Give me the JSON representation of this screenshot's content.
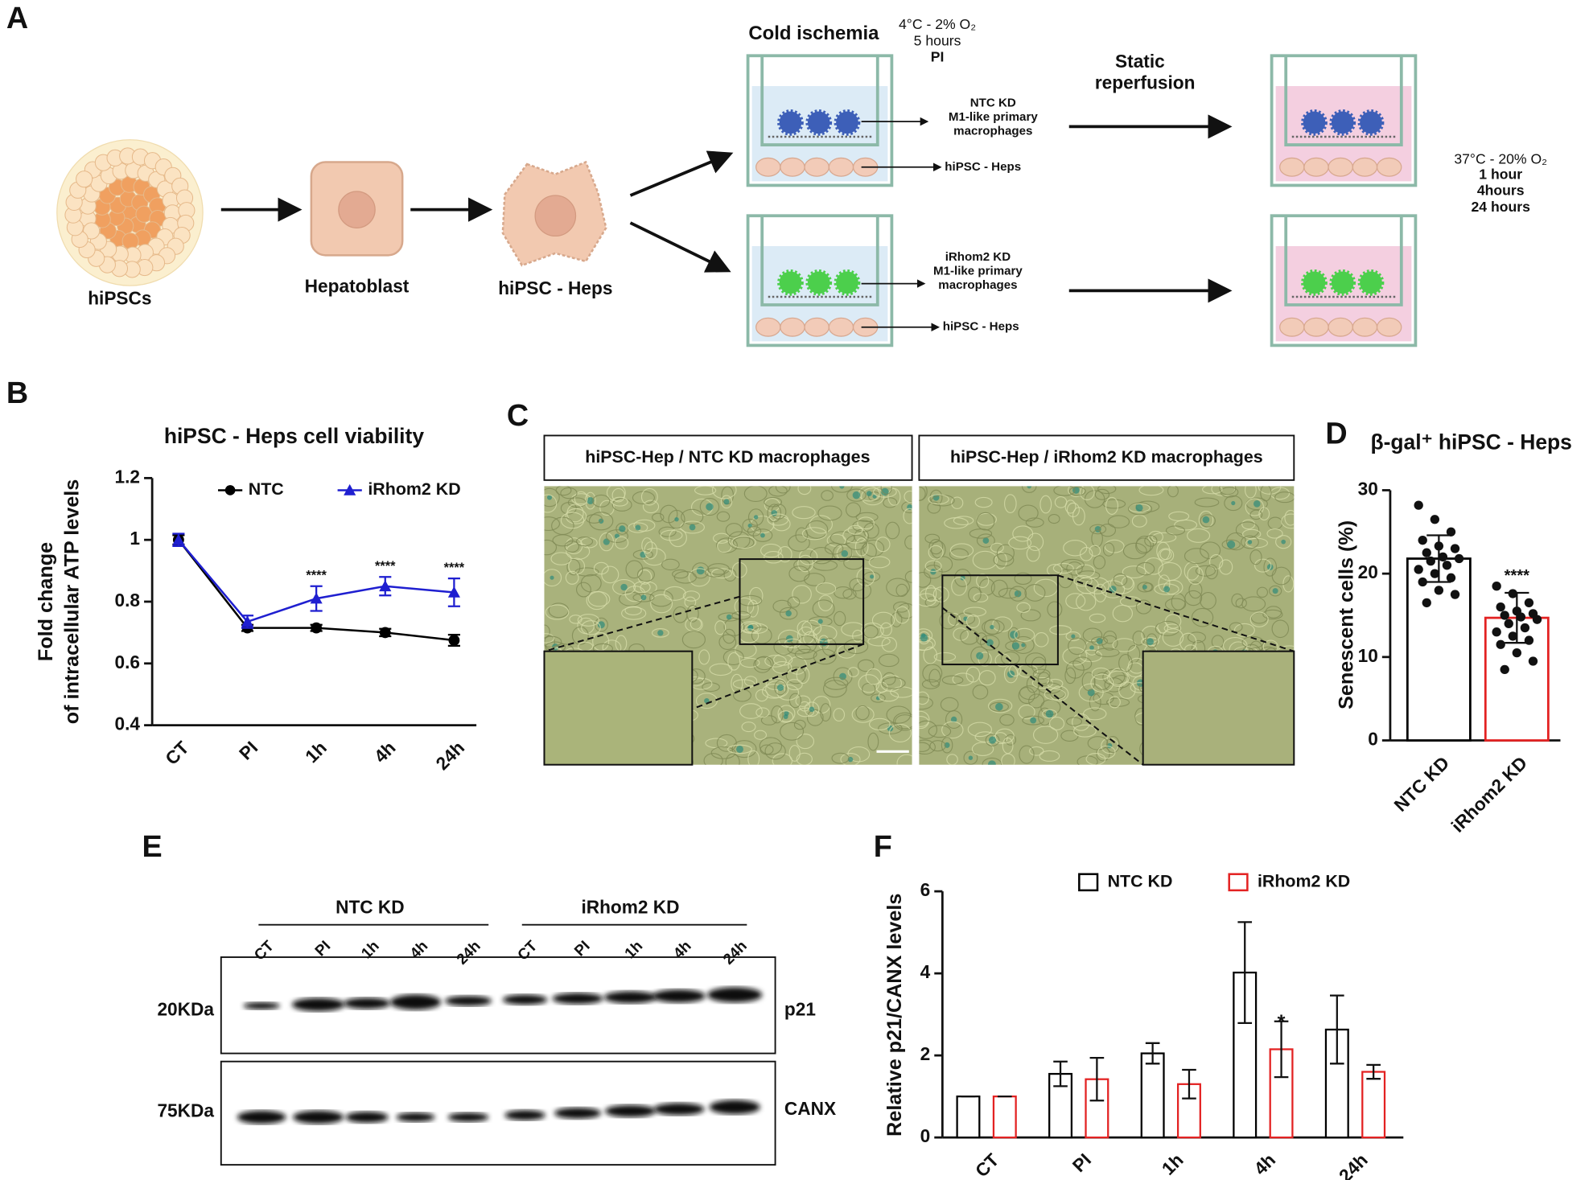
{
  "panel_labels": [
    "A",
    "B",
    "C",
    "D",
    "E",
    "F"
  ],
  "diagram": {
    "cells": [
      "hiPSCs",
      "Hepatoblast",
      "hiPSC - Heps"
    ],
    "cold_ischemia": {
      "title": "Cold ischemia",
      "conditions": [
        "4°C - 2% O₂",
        "5 hours",
        "PI"
      ]
    },
    "reperfusion": {
      "title": [
        "Static",
        "reperfusion"
      ],
      "conditions": [
        "37°C - 20% O₂",
        "1 hour",
        "4hours",
        "24 hours"
      ]
    },
    "wells": [
      {
        "macrophages": [
          "NTC KD",
          "M1-like primary",
          "macrophages"
        ],
        "cells": "hiPSC - Heps"
      },
      {
        "macrophages": [
          "iRhom2 KD",
          "M1-like primary",
          "macrophages"
        ],
        "cells": "hiPSC - Heps"
      }
    ]
  },
  "micrographs": {
    "titles": [
      "hiPSC-Hep / NTC KD macrophages",
      "hiPSC-Hep / iRhom2 KD macrophages"
    ]
  },
  "blot": {
    "groups": [
      "NTC KD",
      "iRhom2 KD"
    ],
    "lanes": [
      "CT",
      "PI",
      "1h",
      "4h",
      "24h",
      "CT",
      "PI",
      "1h",
      "4h",
      "24h"
    ],
    "markers": [
      "20KDa",
      "75KDa"
    ],
    "proteins": [
      "p21",
      "CANX"
    ]
  },
  "chart_data": [
    {
      "type": "line",
      "title": "hiPSC - Heps cell viability",
      "ylabel": [
        "Fold change",
        "of intracellular ATP levels"
      ],
      "categories": [
        "CT",
        "PI",
        "1h",
        "4h",
        "24h"
      ],
      "series": [
        {
          "name": "NTC",
          "color": "#000000",
          "marker": "circle",
          "values": [
            1.0,
            0.715,
            0.715,
            0.7,
            0.675
          ],
          "errors": [
            0.015,
            0.01,
            0.01,
            0.012,
            0.018
          ]
        },
        {
          "name": "iRhom2 KD",
          "color": "#1f1fd0",
          "marker": "triangle",
          "values": [
            1.0,
            0.735,
            0.81,
            0.85,
            0.83
          ],
          "errors": [
            0.02,
            0.02,
            0.04,
            0.03,
            0.045
          ]
        }
      ],
      "ylim": [
        0.4,
        1.2
      ],
      "yticks": [
        0.4,
        0.6,
        0.8,
        1,
        1.2
      ],
      "annotations": [
        "****",
        "****",
        "****"
      ]
    },
    {
      "type": "bar",
      "title": "β-gal⁺ hiPSC - Heps",
      "ylabel": "Senescent cells (%)",
      "categories": [
        "NTC KD",
        "iRhom2 KD"
      ],
      "values": [
        21.8,
        14.7
      ],
      "errors": [
        2.8,
        3.0
      ],
      "colors": [
        "#000000",
        "#e32222"
      ],
      "points": [
        [
          28.2,
          26.5,
          25.0,
          24.0,
          23.3,
          23.0,
          22.5,
          22.0,
          21.8,
          21.5,
          21.0,
          20.5,
          20.0,
          19.5,
          19.0,
          18.0,
          17.5,
          16.5
        ],
        [
          18.5,
          17.6,
          16.5,
          16.0,
          15.5,
          15.2,
          15.0,
          14.8,
          14.5,
          14.0,
          13.5,
          13.0,
          12.5,
          12.0,
          11.5,
          10.5,
          9.5,
          8.5
        ]
      ],
      "ylim": [
        0,
        30
      ],
      "yticks": [
        0,
        10,
        20,
        30
      ],
      "annotations": [
        "****"
      ]
    },
    {
      "type": "bar",
      "ylabel": "Relative p21/CANX levels",
      "categories": [
        "CT",
        "PI",
        "1h",
        "4h",
        "24h"
      ],
      "series": [
        {
          "name": "NTC KD",
          "color": "#000000",
          "values": [
            1,
            1.55,
            2.05,
            4.02,
            2.63
          ],
          "errors": [
            0,
            0.3,
            0.25,
            1.23,
            0.83
          ]
        },
        {
          "name": "iRhom2 KD",
          "color": "#e32222",
          "values": [
            1,
            1.42,
            1.3,
            2.15,
            1.6
          ],
          "errors": [
            0,
            0.52,
            0.35,
            0.68,
            0.17
          ]
        }
      ],
      "ylim": [
        0,
        6
      ],
      "yticks": [
        0,
        2,
        4,
        6
      ],
      "annotations": [
        "*"
      ]
    }
  ]
}
